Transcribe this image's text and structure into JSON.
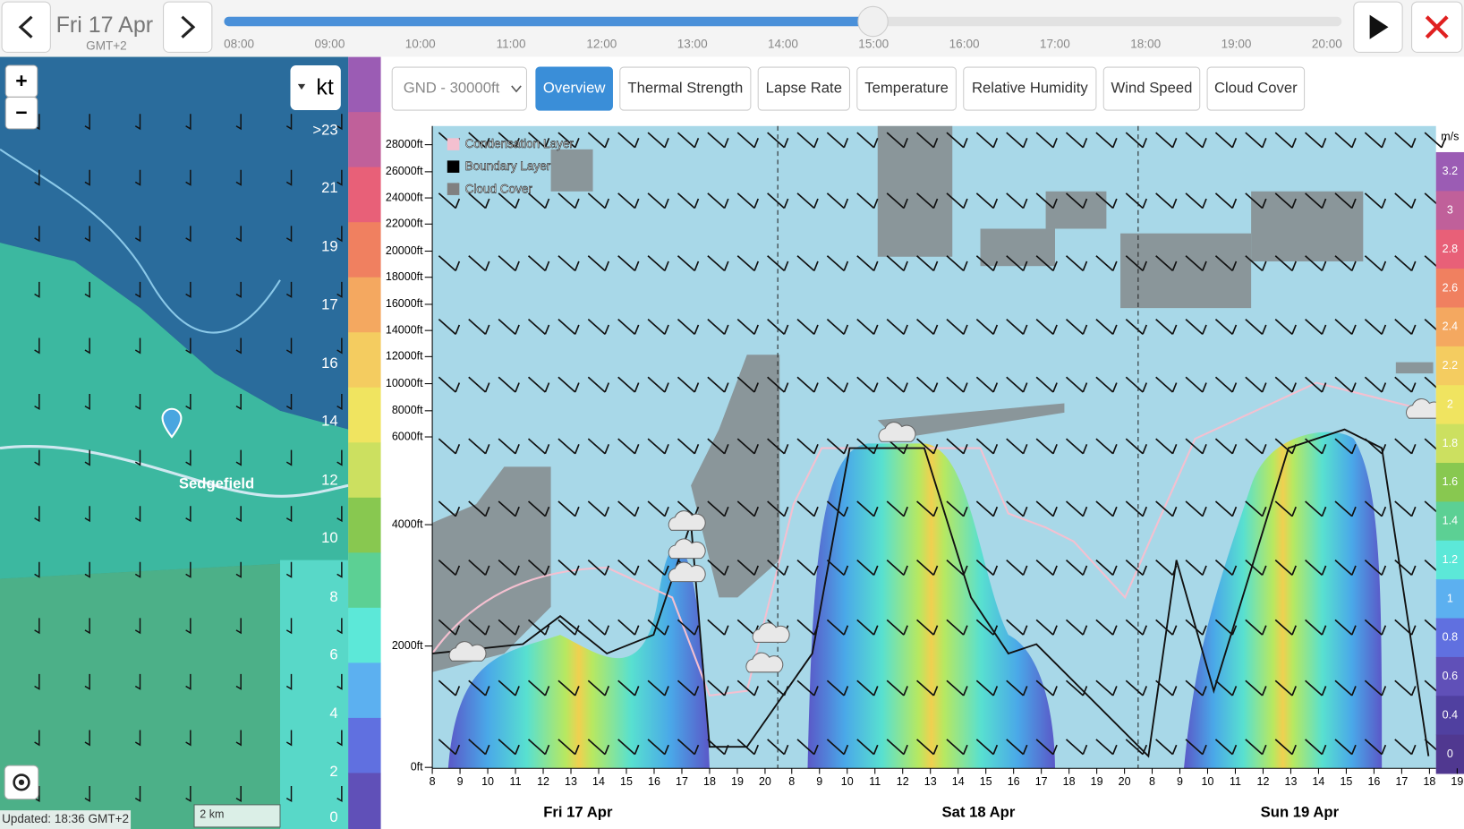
{
  "header": {
    "date": "Fri 17 Apr",
    "timezone": "GMT+2",
    "timeline_hours": [
      "08:00",
      "09:00",
      "10:00",
      "11:00",
      "12:00",
      "13:00",
      "14:00",
      "15:00",
      "16:00",
      "17:00",
      "18:00",
      "19:00",
      "20:00"
    ]
  },
  "map": {
    "zoom_in": "+",
    "zoom_out": "−",
    "unit": "kt",
    "legend": [
      ">23",
      "21",
      "19",
      "17",
      "16",
      "14",
      "12",
      "10",
      "8",
      "6",
      "4",
      "2",
      "0"
    ],
    "place": "Sedgefield",
    "updated": "Updated: 18:36 GMT+2",
    "scale": "2 km"
  },
  "toolbar": {
    "altitude_select": "GND - 30000ft",
    "tabs": [
      "Overview",
      "Thermal Strength",
      "Lapse Rate",
      "Temperature",
      "Relative Humidity",
      "Wind Speed",
      "Cloud Cover"
    ]
  },
  "chart": {
    "altitude_labels": [
      "28000ft",
      "26000ft",
      "24000ft",
      "22000ft",
      "20000ft",
      "18000ft",
      "16000ft",
      "14000ft",
      "12000ft",
      "10000ft",
      "8000ft",
      "6000ft",
      "4000ft",
      "2000ft",
      "0ft"
    ],
    "legend": [
      "Condensation Layer",
      "Boundary Layer",
      "Cloud Cover"
    ],
    "scale_unit": "m/s",
    "scale_labels": [
      "3.2",
      "3",
      "2.8",
      "2.6",
      "2.4",
      "2.2",
      "2",
      "1.8",
      "1.6",
      "1.4",
      "1.2",
      "1",
      "0.8",
      "0.6",
      "0.4",
      "0"
    ],
    "days": [
      {
        "label": "Fri 17 Apr",
        "hours": [
          "8",
          "9",
          "10",
          "11",
          "12",
          "13",
          "14",
          "15",
          "16",
          "17",
          "18",
          "19",
          "20"
        ]
      },
      {
        "label": "Sat 18 Apr",
        "hours": [
          "8",
          "9",
          "10",
          "11",
          "12",
          "13",
          "14",
          "15",
          "16",
          "17",
          "18",
          "19",
          "20"
        ]
      },
      {
        "label": "Sun 19 Apr",
        "hours": [
          "8",
          "9",
          "10",
          "11",
          "12",
          "13",
          "14",
          "15",
          "16",
          "17",
          "18",
          "19"
        ]
      }
    ]
  }
}
